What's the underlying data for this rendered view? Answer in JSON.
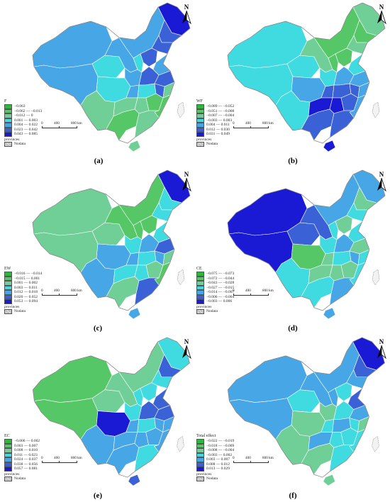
{
  "north_label": "N",
  "scale_bar": {
    "zero": "0",
    "mid": "400",
    "end": "800 km"
  },
  "legend_common": {
    "provinces_label": "provinces",
    "nodata_label": "Nodata"
  },
  "panels": [
    {
      "caption": "(a)",
      "legend_title": "F",
      "classes": [
        {
          "label": "−0.063",
          "color": "#2db83d"
        },
        {
          "label": "−0.062 — −0.013",
          "color": "#55c767"
        },
        {
          "label": "−0.012 — 0",
          "color": "#6fcf97"
        },
        {
          "label": "0.001 — 0.003",
          "color": "#3fdbe0"
        },
        {
          "label": "0.004 — 0.022",
          "color": "#46a6e6"
        },
        {
          "label": "0.023 — 0.042",
          "color": "#3a62d6"
        },
        {
          "label": "0.043 — 0.085",
          "color": "#1a1ad4"
        }
      ]
    },
    {
      "caption": "(b)",
      "legend_title": "WF",
      "classes": [
        {
          "label": "−0.089 — −0.052",
          "color": "#2db83d"
        },
        {
          "label": "−0.051 — −0.008",
          "color": "#55c767"
        },
        {
          "label": "−0.007 — −0.004",
          "color": "#6fcf97"
        },
        {
          "label": "−0.003 — 0.003",
          "color": "#3fdbe0"
        },
        {
          "label": "0.004 — 0.011",
          "color": "#46a6e6"
        },
        {
          "label": "0.012 — 0.030",
          "color": "#3a62d6"
        },
        {
          "label": "0.031 — 0.049",
          "color": "#1a1ad4"
        }
      ]
    },
    {
      "caption": "(c)",
      "legend_title": "EW",
      "classes": [
        {
          "label": "−0.016 — −0.014",
          "color": "#2db83d"
        },
        {
          "label": "−0.015 — 0.001",
          "color": "#55c767"
        },
        {
          "label": "0.001 — 0.002",
          "color": "#6fcf97"
        },
        {
          "label": "0.003 — 0.011",
          "color": "#3fdbe0"
        },
        {
          "label": "0.012 — 0.018",
          "color": "#46a6e6"
        },
        {
          "label": "0.020 — 0.052",
          "color": "#3a62d6"
        },
        {
          "label": "0.053 — 0.094",
          "color": "#1a1ad4"
        }
      ]
    },
    {
      "caption": "(d)",
      "legend_title": "CE",
      "classes": [
        {
          "label": "−0.075 — −0.073",
          "color": "#2db83d"
        },
        {
          "label": "−0.072 — −0.044",
          "color": "#55c767"
        },
        {
          "label": "−0.043 — −0.028",
          "color": "#6fcf97"
        },
        {
          "label": "−0.027 — −0.015",
          "color": "#3fdbe0"
        },
        {
          "label": "−0.014 — −0.007",
          "color": "#46a6e6"
        },
        {
          "label": "−0.006 — −0.004",
          "color": "#3a62d6"
        },
        {
          "label": "−0.003 — 0.006",
          "color": "#1a1ad4"
        }
      ]
    },
    {
      "caption": "(e)",
      "legend_title": "EC",
      "classes": [
        {
          "label": "−0.006 — 0.002",
          "color": "#2db83d"
        },
        {
          "label": "0.003 — 0.007",
          "color": "#55c767"
        },
        {
          "label": "0.008 — 0.010",
          "color": "#6fcf97"
        },
        {
          "label": "0.011 — 0.023",
          "color": "#3fdbe0"
        },
        {
          "label": "0.024 — 0.037",
          "color": "#46a6e6"
        },
        {
          "label": "0.038 — 0.056",
          "color": "#3a62d6"
        },
        {
          "label": "0.057 — 0.081",
          "color": "#1a1ad4"
        }
      ]
    },
    {
      "caption": "(f)",
      "legend_title": "Total effect",
      "classes": [
        {
          "label": "−0.022 — −0.019",
          "color": "#2db83d"
        },
        {
          "label": "−0.018 — −0.009",
          "color": "#55c767"
        },
        {
          "label": "−0.008 — −0.004",
          "color": "#6fcf97"
        },
        {
          "label": "−0.003 — 0.002",
          "color": "#3fdbe0"
        },
        {
          "label": "0.003 — 0.007",
          "color": "#46a6e6"
        },
        {
          "label": "0.008 — 0.012",
          "color": "#3a62d6"
        },
        {
          "label": "0.013 — 0.029",
          "color": "#1a1ad4"
        }
      ]
    }
  ]
}
